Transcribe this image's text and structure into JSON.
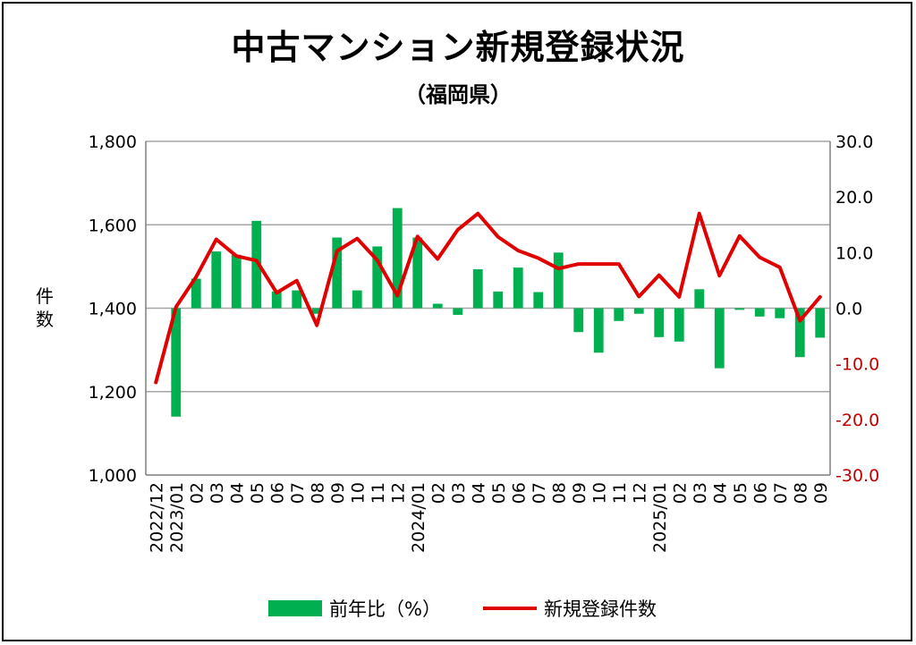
{
  "title": "中古マンション新規登録状況",
  "subtitle": "（福岡県）",
  "ylabel": "件数",
  "legend": {
    "bar": "前年比（%）",
    "line": "新規登録件数"
  },
  "colors": {
    "bar": "#00b050",
    "line": "#e00000",
    "right_axis_text": "#c00000",
    "grid": "#a6a6a6"
  },
  "chart_data": {
    "type": "bar+line",
    "categories": [
      "2022/12",
      "2023/01",
      "02",
      "03",
      "04",
      "05",
      "06",
      "07",
      "08",
      "09",
      "10",
      "11",
      "12",
      "2024/01",
      "02",
      "03",
      "04",
      "05",
      "06",
      "07",
      "08",
      "09",
      "10",
      "11",
      "12",
      "2025/01",
      "02",
      "03",
      "04",
      "05",
      "06",
      "07",
      "08",
      "09"
    ],
    "left_axis": {
      "min": 1000,
      "max": 1800,
      "ticks": [
        "1,000",
        "1,200",
        "1,400",
        "1,600",
        "1,800"
      ]
    },
    "right_axis": {
      "min": -30,
      "max": 30,
      "ticks": [
        "-30.0",
        "-20.0",
        "-10.0",
        "0.0",
        "10.0",
        "20.0",
        "30.0"
      ]
    },
    "series": [
      {
        "name": "前年比（%）",
        "type": "bar",
        "axis": "right",
        "values": [
          null,
          -19.5,
          5.3,
          10.2,
          9.6,
          15.7,
          3.0,
          3.2,
          -1.0,
          12.7,
          3.2,
          11.1,
          18.0,
          12.7,
          0.8,
          -1.2,
          7.0,
          3.0,
          7.3,
          2.9,
          10.0,
          -4.3,
          -8.0,
          -2.3,
          -1.0,
          -5.2,
          -6.0,
          3.4,
          -10.8,
          -0.3,
          -1.5,
          -1.8,
          -8.8,
          -5.3
        ]
      },
      {
        "name": "新規登録件数",
        "type": "line",
        "axis": "left",
        "values": [
          1222,
          1403,
          1475,
          1565,
          1525,
          1514,
          1437,
          1466,
          1359,
          1537,
          1567,
          1515,
          1430,
          1572,
          1518,
          1588,
          1627,
          1571,
          1538,
          1520,
          1495,
          1506,
          1506,
          1506,
          1428,
          1479,
          1427,
          1627,
          1478,
          1573,
          1522,
          1498,
          1370,
          1427
        ]
      }
    ]
  }
}
